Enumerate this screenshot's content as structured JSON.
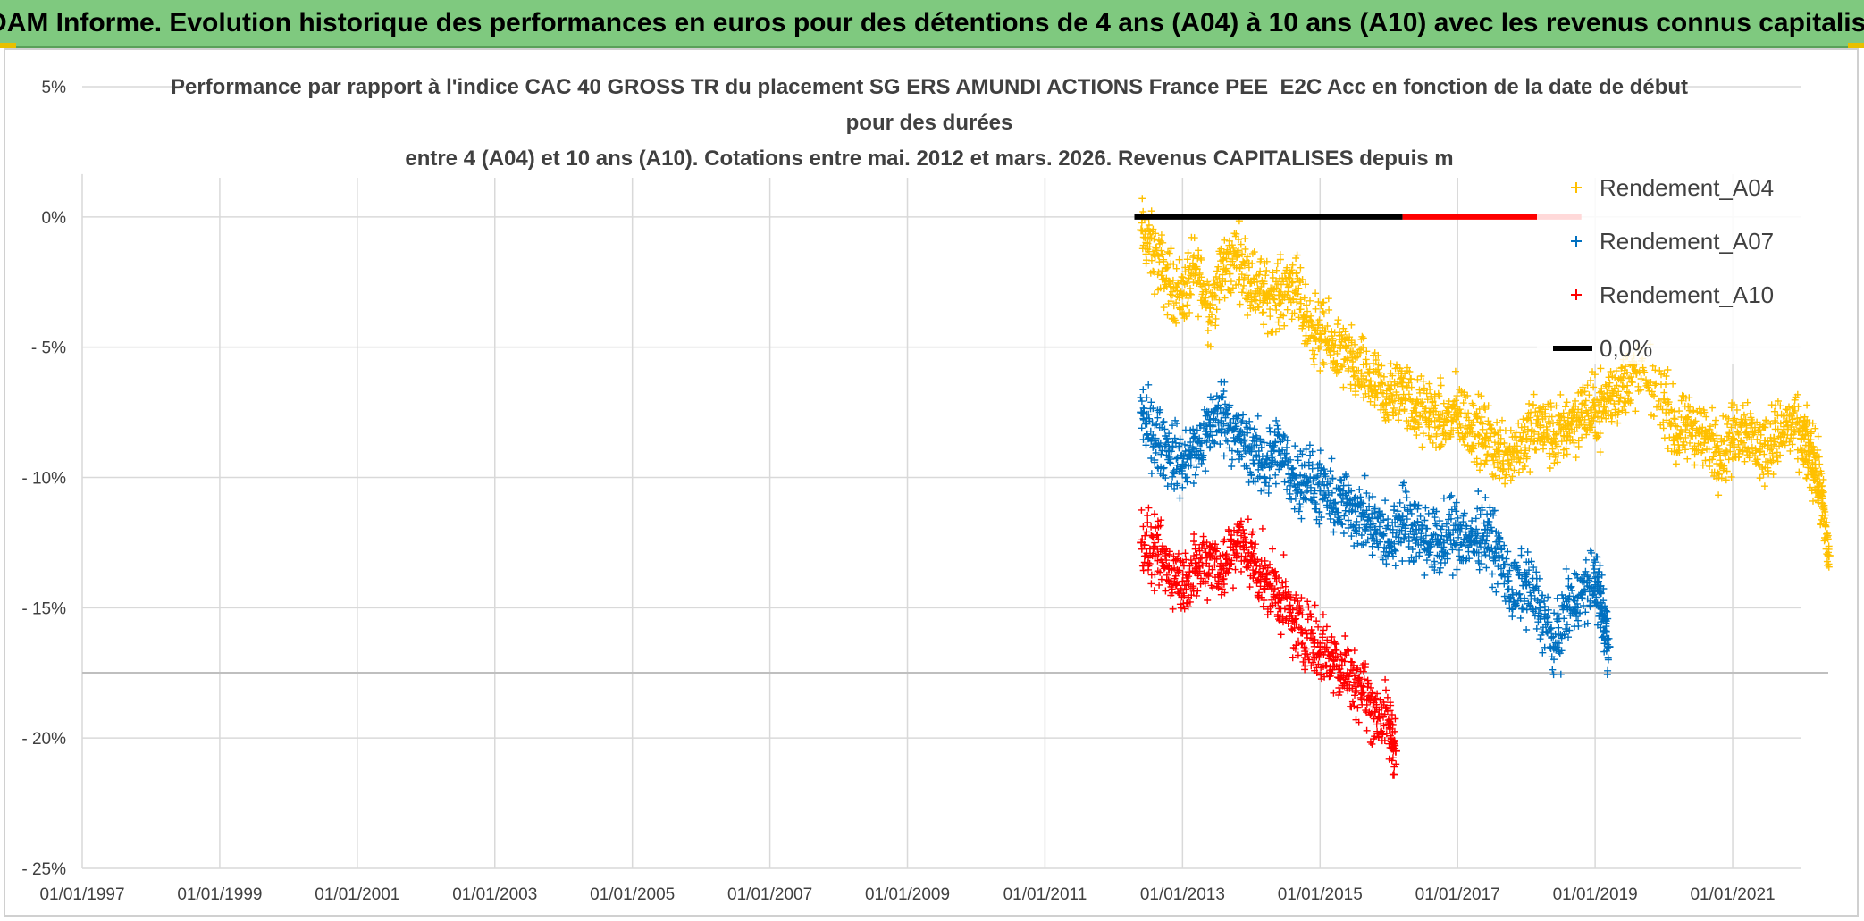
{
  "banner": {
    "title": "ADAM Informe. Evolution historique des performances en euros pour des détentions de 4 ans (A04) à 10 ans (A10) avec les revenus connus capitalisés"
  },
  "colors": {
    "banner_bg": "#7fc97f",
    "A04": "#ffc000",
    "A07": "#0070c0",
    "A10": "#ff0000",
    "zero_line": "#000000",
    "grid": "#d9d9d9"
  },
  "chart_data": {
    "type": "scatter",
    "title_lines": [
      "Performance par rapport à l'indice CAC 40 GROSS TR  du placement SG ERS AMUNDI ACTIONS France PEE_E2C Acc en fonction de la date de début",
      "pour des durées",
      "entre 4 (A04) et 10 ans (A10). Cotations entre mai. 2012 et mars. 2026. Revenus CAPITALISES depuis m"
    ],
    "xlabel": "",
    "ylabel": "",
    "xlim": [
      1997.0,
      2022.0
    ],
    "ylim": [
      -25,
      5
    ],
    "x_ticks": [
      1997,
      1999,
      2001,
      2003,
      2005,
      2007,
      2009,
      2011,
      2013,
      2015,
      2017,
      2019,
      2021
    ],
    "x_tick_labels": [
      "01/01/1997",
      "01/01/1999",
      "01/01/2001",
      "01/01/2003",
      "01/01/2005",
      "01/01/2007",
      "01/01/2009",
      "01/01/2011",
      "01/01/2013",
      "01/01/2015",
      "01/01/2017",
      "01/01/2019",
      "01/01/2021"
    ],
    "y_ticks": [
      5,
      0,
      -5,
      -10,
      -15,
      -20,
      -25
    ],
    "y_tick_labels": [
      "5%",
      "0%",
      "- 5%",
      "- 10%",
      "- 15%",
      "- 20%",
      "- 25%"
    ],
    "legend_position": "right",
    "series": [
      {
        "name": "Rendement_A04",
        "color": "#ffc000",
        "marker": "+",
        "x": [
          2012.4,
          2012.6,
          2012.8,
          2013.0,
          2013.2,
          2013.4,
          2013.6,
          2013.8,
          2014.0,
          2014.2,
          2014.4,
          2014.6,
          2014.8,
          2015.0,
          2015.2,
          2015.4,
          2015.6,
          2015.8,
          2016.0,
          2016.2,
          2016.4,
          2016.6,
          2016.8,
          2017.0,
          2017.2,
          2017.4,
          2017.6,
          2017.8,
          2018.0,
          2018.2,
          2018.4,
          2018.6,
          2018.8,
          2019.0,
          2019.2,
          2019.4,
          2019.6,
          2020.0,
          2020.2,
          2020.4,
          2020.6,
          2020.8,
          2021.0,
          2021.2,
          2021.4,
          2021.6,
          2021.8,
          2022.0,
          2022.1,
          2022.2,
          2022.3,
          2022.4
        ],
        "y": [
          -0.5,
          -1.5,
          -2.5,
          -3.0,
          -2.0,
          -3.5,
          -2.0,
          -1.5,
          -2.5,
          -3.0,
          -3.0,
          -2.5,
          -4.0,
          -4.5,
          -5.0,
          -5.5,
          -6.0,
          -6.5,
          -7.0,
          -6.5,
          -7.5,
          -7.5,
          -8.0,
          -7.5,
          -8.0,
          -8.5,
          -9.0,
          -9.0,
          -8.5,
          -8.0,
          -8.5,
          -8.0,
          -7.5,
          -7.5,
          -7.0,
          -6.5,
          -6.0,
          -7.0,
          -8.5,
          -8.0,
          -8.5,
          -9.0,
          -8.5,
          -8.0,
          -9.0,
          -8.5,
          -8.0,
          -8.5,
          -9.0,
          -9.5,
          -11.0,
          -13.0
        ]
      },
      {
        "name": "Rendement_A07",
        "color": "#0070c0",
        "marker": "+",
        "x": [
          2012.4,
          2012.6,
          2012.8,
          2013.0,
          2013.2,
          2013.4,
          2013.6,
          2013.8,
          2014.0,
          2014.2,
          2014.4,
          2014.6,
          2014.8,
          2015.0,
          2015.2,
          2015.4,
          2015.6,
          2015.8,
          2016.0,
          2016.2,
          2016.4,
          2016.6,
          2016.8,
          2017.0,
          2017.2,
          2017.4,
          2017.6,
          2017.8,
          2018.0,
          2018.2,
          2018.4,
          2018.6,
          2018.8,
          2019.0,
          2019.1,
          2019.2
        ],
        "y": [
          -7.5,
          -8.5,
          -9.0,
          -9.5,
          -9.0,
          -8.0,
          -7.5,
          -8.5,
          -9.0,
          -9.5,
          -9.0,
          -10.0,
          -10.0,
          -10.5,
          -11.0,
          -11.0,
          -11.5,
          -12.0,
          -12.5,
          -11.5,
          -12.0,
          -12.5,
          -12.5,
          -12.0,
          -12.5,
          -12.0,
          -13.0,
          -14.5,
          -14.0,
          -15.0,
          -16.5,
          -15.0,
          -14.5,
          -14.0,
          -15.0,
          -16.5
        ]
      },
      {
        "name": "Rendement_A10",
        "color": "#ff0000",
        "marker": "+",
        "x": [
          2012.4,
          2012.6,
          2012.8,
          2013.0,
          2013.2,
          2013.4,
          2013.6,
          2013.8,
          2014.0,
          2014.2,
          2014.4,
          2014.6,
          2014.8,
          2015.0,
          2015.2,
          2015.4,
          2015.6,
          2015.8,
          2016.0,
          2016.1
        ],
        "y": [
          -12.5,
          -13.0,
          -13.5,
          -14.0,
          -13.5,
          -13.0,
          -13.5,
          -12.5,
          -13.0,
          -14.0,
          -14.5,
          -15.5,
          -16.0,
          -16.5,
          -17.0,
          -17.5,
          -18.0,
          -19.0,
          -19.5,
          -20.5
        ]
      },
      {
        "name": "0,0%",
        "color": "#000000",
        "type": "line",
        "x": [
          2012.3,
          2016.2
        ],
        "y": [
          0,
          0
        ]
      },
      {
        "name": "Rendement_A10 (0%)",
        "color": "#ff0000",
        "type": "line",
        "legend": false,
        "x": [
          2016.2,
          2018.8
        ],
        "y": [
          0,
          0
        ]
      }
    ]
  }
}
